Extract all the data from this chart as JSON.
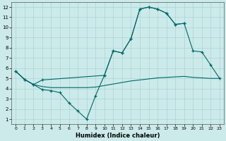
{
  "xlabel": "Humidex (Indice chaleur)",
  "bg_color": "#cceaea",
  "line_color": "#006868",
  "grid_color": "#aad4d4",
  "xlim": [
    -0.5,
    23.5
  ],
  "ylim": [
    0.5,
    12.5
  ],
  "xticks": [
    0,
    1,
    2,
    3,
    4,
    5,
    6,
    7,
    8,
    9,
    10,
    11,
    12,
    13,
    14,
    15,
    16,
    17,
    18,
    19,
    20,
    21,
    22,
    23
  ],
  "yticks": [
    1,
    2,
    3,
    4,
    5,
    6,
    7,
    8,
    9,
    10,
    11,
    12
  ],
  "line1_x": [
    0,
    1,
    2,
    3,
    4,
    5,
    6,
    7,
    8,
    9,
    10,
    11,
    12,
    13,
    14,
    15,
    16,
    17,
    18,
    19,
    20,
    21,
    22,
    23
  ],
  "line1_y": [
    5.7,
    4.9,
    4.4,
    3.9,
    3.8,
    3.6,
    2.6,
    1.8,
    1.0,
    3.3,
    5.3,
    7.7,
    7.5,
    8.9,
    11.8,
    12.0,
    11.8,
    11.4,
    10.3,
    10.4,
    null,
    null,
    null,
    null
  ],
  "line2_x": [
    0,
    1,
    2,
    3,
    10,
    11,
    12,
    13,
    14,
    15,
    16,
    17,
    18,
    19,
    20,
    21,
    22,
    23
  ],
  "line2_y": [
    5.7,
    4.9,
    4.4,
    4.85,
    5.3,
    7.7,
    7.5,
    8.9,
    11.8,
    12.0,
    11.8,
    11.4,
    10.3,
    10.4,
    7.7,
    7.6,
    6.3,
    5.0
  ],
  "line3_x": [
    0,
    1,
    2,
    3,
    4,
    5,
    6,
    7,
    8,
    9,
    10,
    11,
    12,
    13,
    14,
    15,
    16,
    17,
    18,
    19,
    20,
    21,
    22,
    23
  ],
  "line3_y": [
    5.7,
    4.9,
    4.4,
    4.2,
    4.1,
    4.1,
    4.1,
    4.1,
    4.1,
    4.15,
    4.3,
    4.45,
    4.6,
    4.75,
    4.85,
    4.95,
    5.05,
    5.1,
    5.15,
    5.2,
    5.1,
    5.05,
    5.0,
    5.0
  ]
}
